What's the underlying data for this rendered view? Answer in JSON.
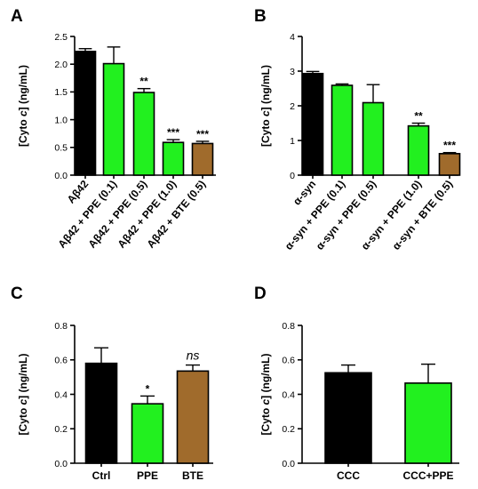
{
  "colors": {
    "black": "#000000",
    "green": "#22f01f",
    "brown": "#a06b2c"
  },
  "chart_data": [
    {
      "type": "bar",
      "panel": "A",
      "ylabel_main": "[Cyto ",
      "ylabel_italic": "c",
      "ylabel_end": "] (ng/mL)",
      "ylim": [
        0,
        2.5
      ],
      "yticks": [
        "0.0",
        "0.5",
        "1.0",
        "1.5",
        "2.0",
        "2.5"
      ],
      "categories": [
        "Aβ42",
        "Aβ42 + PPE (0.1)",
        "Aβ42 + PPE (0.5)",
        "Aβ42 + PPE (1.0)",
        "Aβ42 + BTE (0.5)"
      ],
      "values": [
        2.23,
        2.01,
        1.49,
        0.59,
        0.57
      ],
      "errors": [
        0.05,
        0.3,
        0.07,
        0.05,
        0.04
      ],
      "colors": [
        "black",
        "green",
        "green",
        "green",
        "brown"
      ],
      "significance": [
        "",
        "",
        "**",
        "***",
        "***"
      ],
      "label_rotation": "diagonal"
    },
    {
      "type": "bar",
      "panel": "B",
      "ylabel_main": "[Cyto ",
      "ylabel_italic": "c",
      "ylabel_end": "] (ng/mL)",
      "ylim": [
        0,
        4
      ],
      "yticks": [
        "0",
        "1",
        "2",
        "3",
        "4"
      ],
      "categories": [
        "α-syn",
        "α-syn + PPE (0.1)",
        "α-syn + PPE (0.5)",
        "α-syn + PPE (1.0)",
        "α-syn + BTE (0.5)"
      ],
      "values": [
        2.93,
        2.59,
        2.09,
        1.42,
        0.62
      ],
      "errors": [
        0.06,
        0.04,
        0.52,
        0.08,
        0.03
      ],
      "colors": [
        "black",
        "green",
        "green",
        "green",
        "brown"
      ],
      "significance": [
        "",
        "",
        "",
        "**",
        "***"
      ],
      "label_rotation": "diagonal"
    },
    {
      "type": "bar",
      "panel": "C",
      "ylabel_main": "[Cyto ",
      "ylabel_italic": "c",
      "ylabel_end": "] (ng/mL)",
      "ylim": [
        0,
        0.8
      ],
      "yticks": [
        "0.0",
        "0.2",
        "0.4",
        "0.6",
        "0.8"
      ],
      "categories": [
        "Ctrl",
        "PPE",
        "BTE"
      ],
      "values": [
        0.58,
        0.345,
        0.535
      ],
      "errors": [
        0.09,
        0.045,
        0.035
      ],
      "colors": [
        "black",
        "green",
        "brown"
      ],
      "significance": [
        "",
        "*",
        "ns"
      ],
      "label_rotation": "none"
    },
    {
      "type": "bar",
      "panel": "D",
      "ylabel_main": "[Cyto ",
      "ylabel_italic": "c",
      "ylabel_end": "] (ng/mL)",
      "ylim": [
        0,
        0.8
      ],
      "yticks": [
        "0.0",
        "0.2",
        "0.4",
        "0.6",
        "0.8"
      ],
      "categories": [
        "CCC",
        "CCC+PPE"
      ],
      "values": [
        0.525,
        0.465
      ],
      "errors": [
        0.045,
        0.11
      ],
      "colors": [
        "black",
        "green"
      ],
      "significance": [
        "",
        ""
      ],
      "label_rotation": "none"
    }
  ]
}
